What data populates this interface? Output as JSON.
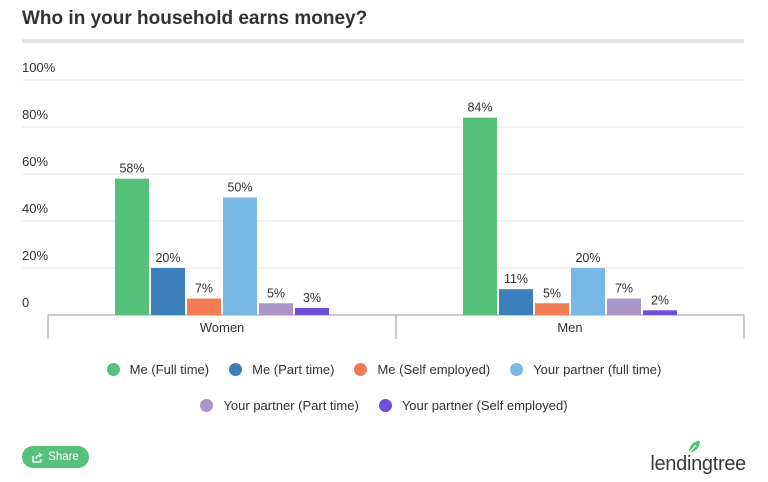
{
  "title": "Who in your household earns money?",
  "share_label": "Share",
  "brand": "lendingtree",
  "colors": {
    "grid": "#e6e6e6",
    "axis": "#999999",
    "share_bg": "#56c17a",
    "brand_leaf": "#56c17a"
  },
  "chart_data": {
    "type": "bar",
    "title": "Who in your household earns money?",
    "categories": [
      "Women",
      "Men"
    ],
    "ylim": [
      0,
      100
    ],
    "yticks": [
      "0",
      "20%",
      "40%",
      "60%",
      "80%",
      "100%"
    ],
    "ytick_values": [
      0,
      20,
      40,
      60,
      80,
      100
    ],
    "legend_position": "bottom",
    "series": [
      {
        "name": "Me (Full time)",
        "color": "#56c17a",
        "values": [
          58,
          84
        ],
        "labels": [
          "58%",
          "84%"
        ]
      },
      {
        "name": "Me (Part time)",
        "color": "#3b80bb",
        "values": [
          20,
          11
        ],
        "labels": [
          "20%",
          "11%"
        ]
      },
      {
        "name": "Me (Self employed)",
        "color": "#f27b55",
        "values": [
          7,
          5
        ],
        "labels": [
          "7%",
          "5%"
        ]
      },
      {
        "name": "Your partner (full time)",
        "color": "#79b8e4",
        "values": [
          50,
          20
        ],
        "labels": [
          "50%",
          "20%"
        ]
      },
      {
        "name": "Your partner (Part time)",
        "color": "#a995c8",
        "values": [
          5,
          7
        ],
        "labels": [
          "5%",
          "7%"
        ]
      },
      {
        "name": "Your partner (Self employed)",
        "color": "#6d4fd8",
        "values": [
          3,
          2
        ],
        "labels": [
          "3%",
          "2%"
        ]
      }
    ]
  }
}
